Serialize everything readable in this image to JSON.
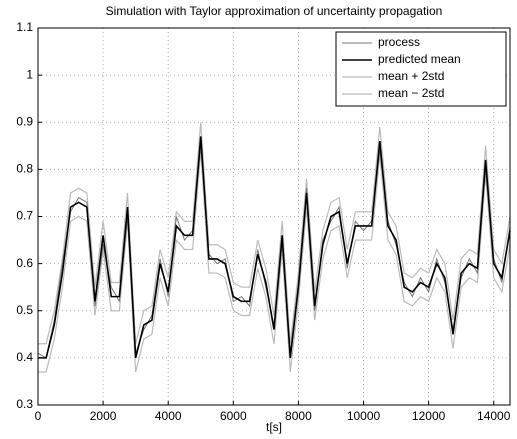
{
  "chart_data": {
    "type": "line",
    "title": "Simulation with Taylor approximation of uncertainty propagation",
    "x_label": "t[s]",
    "x": [
      0,
      250,
      500,
      750,
      1000,
      1250,
      1500,
      1750,
      2000,
      2250,
      2500,
      2750,
      3000,
      3250,
      3500,
      3750,
      4000,
      4250,
      4500,
      4750,
      5000,
      5250,
      5500,
      5750,
      6000,
      6250,
      6500,
      6750,
      7000,
      7250,
      7500,
      7750,
      8000,
      8250,
      8500,
      8750,
      9000,
      9250,
      9500,
      9750,
      10000,
      10250,
      10500,
      10750,
      11000,
      11250,
      11500,
      11750,
      12000,
      12250,
      12500,
      12750,
      13000,
      13250,
      13500,
      13750,
      14000,
      14250,
      14500
    ],
    "series": [
      {
        "name": "process",
        "color": "#777777",
        "width": 1,
        "values": [
          0.41,
          0.4,
          0.48,
          0.6,
          0.71,
          0.74,
          0.73,
          0.51,
          0.64,
          0.55,
          0.52,
          0.7,
          0.41,
          0.46,
          0.49,
          0.61,
          0.53,
          0.7,
          0.65,
          0.67,
          0.85,
          0.62,
          0.6,
          0.61,
          0.52,
          0.53,
          0.51,
          0.63,
          0.55,
          0.47,
          0.64,
          0.41,
          0.56,
          0.76,
          0.5,
          0.65,
          0.69,
          0.72,
          0.59,
          0.69,
          0.67,
          0.69,
          0.84,
          0.69,
          0.64,
          0.56,
          0.53,
          0.57,
          0.54,
          0.61,
          0.56,
          0.46,
          0.57,
          0.61,
          0.58,
          0.8,
          0.61,
          0.56,
          0.68
        ]
      },
      {
        "name": "predicted mean",
        "color": "#000000",
        "width": 1.6,
        "values": [
          0.4,
          0.4,
          0.47,
          0.58,
          0.72,
          0.73,
          0.72,
          0.52,
          0.66,
          0.53,
          0.53,
          0.72,
          0.4,
          0.47,
          0.48,
          0.6,
          0.54,
          0.68,
          0.66,
          0.66,
          0.87,
          0.61,
          0.61,
          0.6,
          0.53,
          0.52,
          0.52,
          0.62,
          0.56,
          0.46,
          0.66,
          0.4,
          0.55,
          0.75,
          0.51,
          0.64,
          0.7,
          0.71,
          0.6,
          0.68,
          0.68,
          0.68,
          0.86,
          0.68,
          0.65,
          0.55,
          0.54,
          0.56,
          0.55,
          0.6,
          0.57,
          0.45,
          0.58,
          0.6,
          0.59,
          0.82,
          0.6,
          0.57,
          0.67
        ]
      },
      {
        "name": "mean + 2std",
        "color": "#bbbbbb",
        "width": 1.2,
        "values": [
          0.43,
          0.43,
          0.5,
          0.61,
          0.75,
          0.76,
          0.75,
          0.55,
          0.69,
          0.56,
          0.56,
          0.75,
          0.43,
          0.5,
          0.51,
          0.63,
          0.57,
          0.71,
          0.69,
          0.69,
          0.9,
          0.64,
          0.64,
          0.63,
          0.56,
          0.55,
          0.55,
          0.65,
          0.59,
          0.49,
          0.69,
          0.43,
          0.58,
          0.78,
          0.54,
          0.67,
          0.73,
          0.74,
          0.63,
          0.71,
          0.71,
          0.71,
          0.89,
          0.71,
          0.68,
          0.58,
          0.57,
          0.59,
          0.58,
          0.63,
          0.6,
          0.48,
          0.61,
          0.63,
          0.62,
          0.85,
          0.63,
          0.6,
          0.7
        ]
      },
      {
        "name": "mean − 2std",
        "color": "#bbbbbb",
        "width": 1.2,
        "values": [
          0.37,
          0.37,
          0.44,
          0.55,
          0.69,
          0.7,
          0.69,
          0.49,
          0.63,
          0.5,
          0.5,
          0.69,
          0.37,
          0.44,
          0.45,
          0.57,
          0.51,
          0.65,
          0.63,
          0.63,
          0.84,
          0.58,
          0.58,
          0.57,
          0.5,
          0.49,
          0.49,
          0.59,
          0.53,
          0.43,
          0.63,
          0.37,
          0.52,
          0.72,
          0.48,
          0.61,
          0.67,
          0.68,
          0.57,
          0.65,
          0.65,
          0.65,
          0.83,
          0.65,
          0.62,
          0.52,
          0.51,
          0.53,
          0.52,
          0.57,
          0.54,
          0.42,
          0.55,
          0.57,
          0.56,
          0.79,
          0.57,
          0.54,
          0.64
        ]
      }
    ],
    "xlim": [
      0,
      14500
    ],
    "xticks": [
      0,
      2000,
      4000,
      6000,
      8000,
      10000,
      12000,
      14000
    ],
    "ylim": [
      0.3,
      1.1
    ],
    "yticks": [
      0.3,
      0.4,
      0.5,
      0.6,
      0.7,
      0.8,
      0.9,
      1,
      1.1
    ],
    "grid": true,
    "legend": "top-right"
  }
}
